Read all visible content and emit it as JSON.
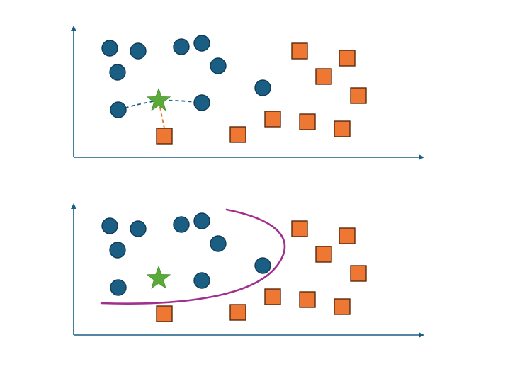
{
  "colors": {
    "background": "#ffffff",
    "axis": "#1b5e84",
    "circle_fill": "#1b5e84",
    "circle_stroke": "#0f3b57",
    "square_fill": "#ee7733",
    "square_stroke": "#5a2a0e",
    "star_fill": "#5aaa3a",
    "neighbor_dashed_blue": "#1b5e84",
    "neighbor_dashed_orange": "#e07a2a",
    "decision_boundary": "#a0308f"
  },
  "icons": {
    "circle_marker": "circle-icon",
    "square_marker": "square-icon",
    "query_marker": "star-icon"
  },
  "panels": [
    {
      "name": "top-panel",
      "show_neighbor_links": true,
      "show_boundary": false
    },
    {
      "name": "bottom-panel",
      "show_neighbor_links": false,
      "show_boundary": true
    }
  ]
}
